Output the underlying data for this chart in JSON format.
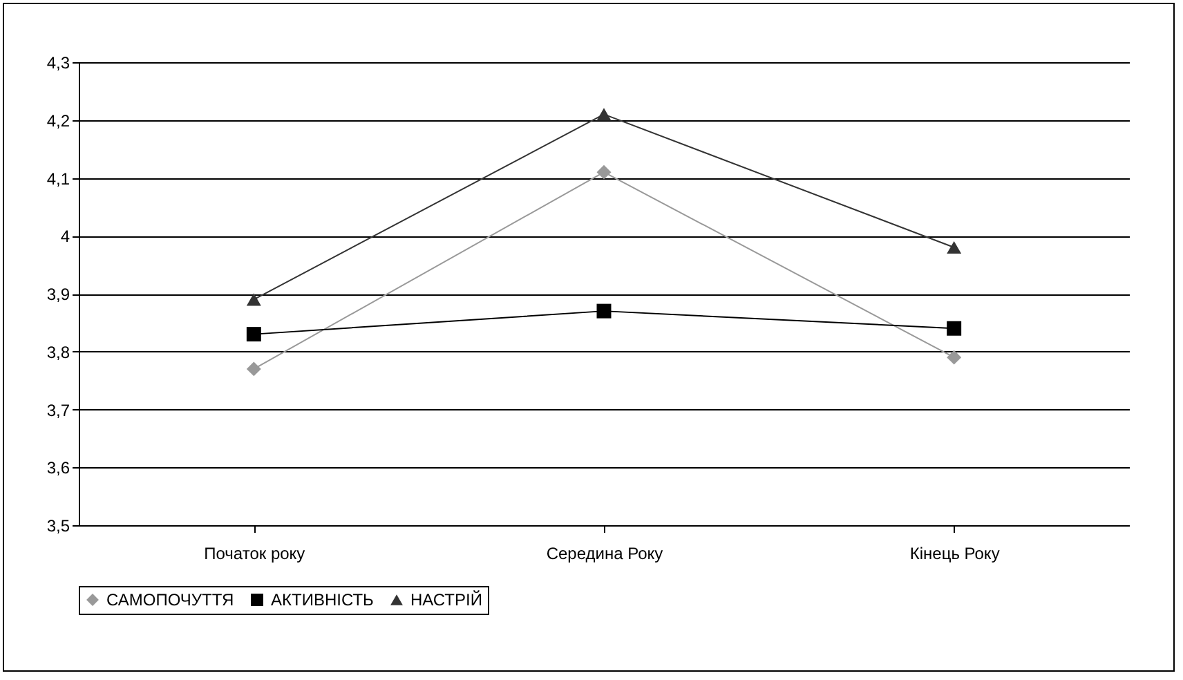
{
  "chart_data": {
    "type": "line",
    "categories": [
      "Початок року",
      "Середина Року",
      "Кінець Року"
    ],
    "series": [
      {
        "name": "САМОПОЧУТТЯ",
        "color": "#999999",
        "marker": "diamond",
        "values": [
          3.77,
          4.11,
          3.79
        ]
      },
      {
        "name": "АКТИВНІСТЬ",
        "color": "#000000",
        "marker": "square",
        "values": [
          3.83,
          3.87,
          3.84
        ]
      },
      {
        "name": "НАСТРІЙ",
        "color": "#333333",
        "marker": "triangle",
        "values": [
          3.89,
          4.21,
          3.98
        ]
      }
    ],
    "ylim": [
      3.5,
      4.3
    ],
    "yticks": [
      {
        "value": 3.5,
        "label": "3,5"
      },
      {
        "value": 3.6,
        "label": "3,6"
      },
      {
        "value": 3.7,
        "label": "3,7"
      },
      {
        "value": 3.8,
        "label": "3,8"
      },
      {
        "value": 3.9,
        "label": "3,9"
      },
      4,
      {
        "value": 4.1,
        "label": "4,1"
      },
      {
        "value": 4.2,
        "label": "4,2"
      },
      {
        "value": 4.3,
        "label": "4,3"
      }
    ],
    "grid": "y",
    "legend": "bottom"
  }
}
